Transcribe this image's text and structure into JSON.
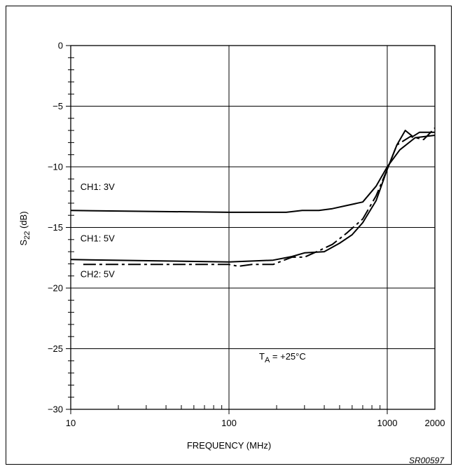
{
  "chart_data": {
    "type": "line",
    "title": "",
    "xlabel": "FREQUENCY (MHz)",
    "ylabel_main": "S",
    "ylabel_sub": "22",
    "ylabel_unit": " (dB)",
    "x_scale": "log",
    "xlim": [
      10,
      2000
    ],
    "ylim": [
      -30,
      0
    ],
    "grid": true,
    "x_ticks": [
      {
        "value": 10,
        "label": "10"
      },
      {
        "value": 100,
        "label": "100"
      },
      {
        "value": 1000,
        "label": "1000"
      },
      {
        "value": 2000,
        "label": "2000"
      }
    ],
    "y_ticks": [
      {
        "value": 0,
        "label": "0"
      },
      {
        "value": -5,
        "label": "−5"
      },
      {
        "value": -10,
        "label": "−10"
      },
      {
        "value": -15,
        "label": "−15"
      },
      {
        "value": -20,
        "label": "−20"
      },
      {
        "value": -25,
        "label": "−25"
      },
      {
        "value": -30,
        "label": "−30"
      }
    ],
    "series": [
      {
        "name": "CH1: 3V",
        "style": "solid",
        "x": [
          10,
          100,
          230,
          290,
          370,
          450,
          550,
          700,
          850,
          1000,
          1200,
          1500,
          2000
        ],
        "y": [
          -13.6,
          -13.75,
          -13.75,
          -13.6,
          -13.6,
          -13.45,
          -13.2,
          -12.9,
          -11.6,
          -10.0,
          -8.6,
          -7.6,
          -7.4
        ]
      },
      {
        "name": "CH1: 5V",
        "style": "solid",
        "x": [
          10,
          100,
          190,
          250,
          300,
          400,
          500,
          600,
          700,
          850,
          1000,
          1150,
          1300,
          1450,
          1600,
          2000
        ],
        "y": [
          -17.65,
          -17.85,
          -17.7,
          -17.4,
          -17.1,
          -17.0,
          -16.3,
          -15.6,
          -14.6,
          -12.8,
          -10.2,
          -8.2,
          -7.0,
          -7.5,
          -7.15,
          -7.15
        ]
      },
      {
        "name": "CH2: 5V",
        "style": "dash-dot",
        "x": [
          12,
          100,
          115,
          140,
          190,
          250,
          300,
          380,
          450,
          550,
          700,
          850,
          1000,
          1150,
          1400,
          1700,
          2000
        ],
        "y": [
          -18.05,
          -18.05,
          -18.2,
          -18.05,
          -18.05,
          -17.45,
          -17.45,
          -16.85,
          -16.4,
          -15.5,
          -14.3,
          -12.4,
          -10.2,
          -8.2,
          -7.5,
          -7.75,
          -6.8
        ]
      }
    ],
    "annotations": [
      {
        "text": "CH1: 3V",
        "x": 11.5,
        "y": -11.9
      },
      {
        "text": "CH1: 5V",
        "x": 11.5,
        "y": -16.15
      },
      {
        "text": "CH2: 5V",
        "x": 11.5,
        "y": -19.1
      }
    ],
    "temp_label": {
      "main": "T",
      "sub": "A",
      "rest": " = +25°C",
      "x": 155,
      "y": -25.9
    }
  },
  "footer": {
    "code": "SR00597"
  }
}
